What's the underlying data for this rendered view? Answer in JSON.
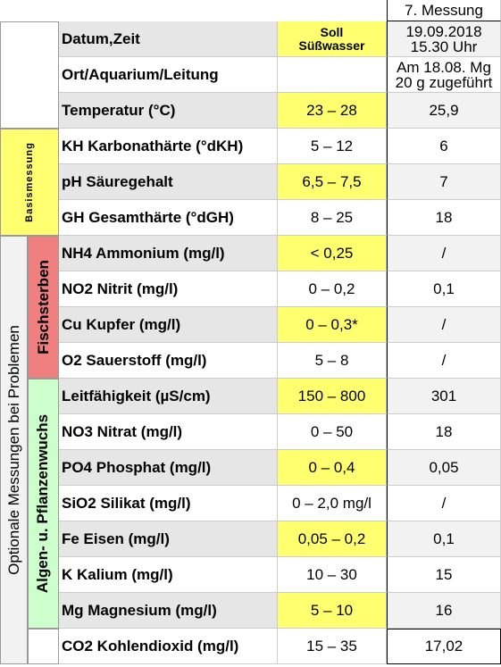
{
  "header": {
    "measurement": "7. Messung",
    "soll": [
      "Soll",
      "Süßwasser"
    ]
  },
  "groups": {
    "basis": "Basismessung",
    "optional": "Optionale Messungen bei Problemen",
    "fish": "Fischsterben",
    "algae": "Algen- u. Pflanzenwuchs"
  },
  "rows": [
    {
      "label": "Datum,Zeit",
      "soll": null,
      "value": [
        "19.09.2018",
        "15.30 Uhr"
      ]
    },
    {
      "label": "Ort/Aquarium/Leitung",
      "soll": null,
      "value": [
        "Am 18.08. Mg",
        "20 g zugeführt"
      ]
    },
    {
      "label": "Temperatur (°C)",
      "soll": "23 – 28",
      "value": [
        "25,9"
      ]
    },
    {
      "label": "KH Karbonathärte (°dKH)",
      "soll": "5 – 12",
      "value": [
        "6"
      ]
    },
    {
      "label": "pH Säuregehalt",
      "soll": "6,5 – 7,5",
      "value": [
        "7"
      ]
    },
    {
      "label": "GH Gesamthärte (°dGH)",
      "soll": "8 – 25",
      "value": [
        "18"
      ]
    },
    {
      "label": "NH4 Ammonium (mg/l)",
      "soll": "< 0,25",
      "value": [
        "/"
      ]
    },
    {
      "label": "NO2 Nitrit (mg/l)",
      "soll": "0 – 0,2",
      "value": [
        "0,1"
      ]
    },
    {
      "label": "Cu Kupfer (mg/l)",
      "soll": "0 – 0,3*",
      "value": [
        "/"
      ]
    },
    {
      "label": "O2 Sauerstoff (mg/l)",
      "soll": "5 – 8",
      "value": [
        "/"
      ]
    },
    {
      "label": "Leitfähigkeit (µS/cm)",
      "soll": "150 – 800",
      "value": [
        "301"
      ]
    },
    {
      "label": "NO3 Nitrat (mg/l)",
      "soll": "0 – 50",
      "value": [
        "18"
      ]
    },
    {
      "label": "PO4 Phosphat (mg/l)",
      "soll": "0 – 0,4",
      "value": [
        "0,05"
      ]
    },
    {
      "label": "SiO2 Silikat (mg/l)",
      "soll": "0 – 2,0 mg/l",
      "value": [
        "/"
      ]
    },
    {
      "label": "Fe Eisen (mg/l)",
      "soll": "0,05 – 0,2",
      "value": [
        "0,1"
      ]
    },
    {
      "label": "K Kalium (mg/l)",
      "soll": "10 – 30",
      "value": [
        "15"
      ]
    },
    {
      "label": "Mg Magnesium (mg/l)",
      "soll": "5 – 10",
      "value": [
        "16"
      ]
    },
    {
      "label": "CO2 Kohlendioxid (mg/l)",
      "soll": "15 – 35",
      "value": [
        "17,02"
      ]
    }
  ]
}
